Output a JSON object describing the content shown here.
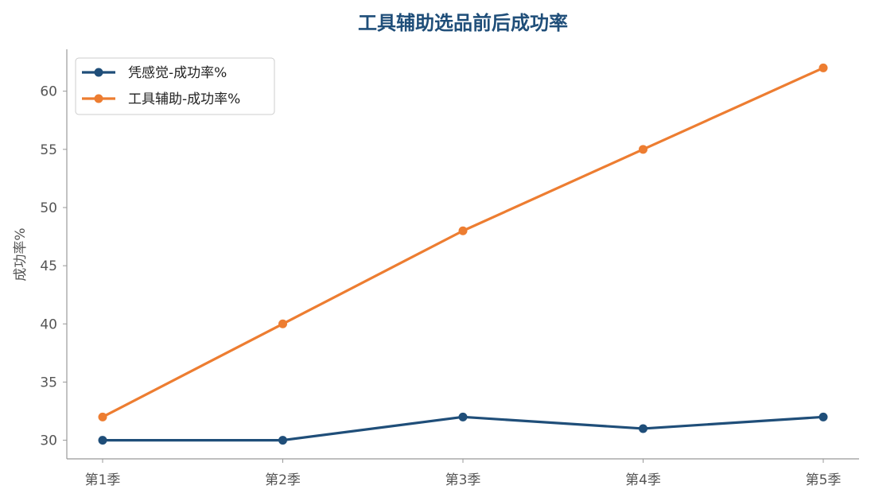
{
  "chart_data": {
    "type": "line",
    "title": "工具辅助选品前后成功率",
    "xlabel": "",
    "ylabel": "成功率%",
    "categories": [
      "第1季",
      "第2季",
      "第3季",
      "第4季",
      "第5季"
    ],
    "series": [
      {
        "name": "凭感觉-成功率%",
        "values": [
          30,
          30,
          32,
          31,
          32
        ],
        "color": "#1f4e79"
      },
      {
        "name": "工具辅助-成功率%",
        "values": [
          32,
          40,
          48,
          55,
          62
        ],
        "color": "#ed7d31"
      }
    ],
    "ylim": [
      28.4,
      63.6
    ],
    "yticks": [
      30,
      35,
      40,
      45,
      50,
      55,
      60
    ],
    "grid": false,
    "legend_position": "top-left",
    "title_color": "#1f4e79"
  }
}
